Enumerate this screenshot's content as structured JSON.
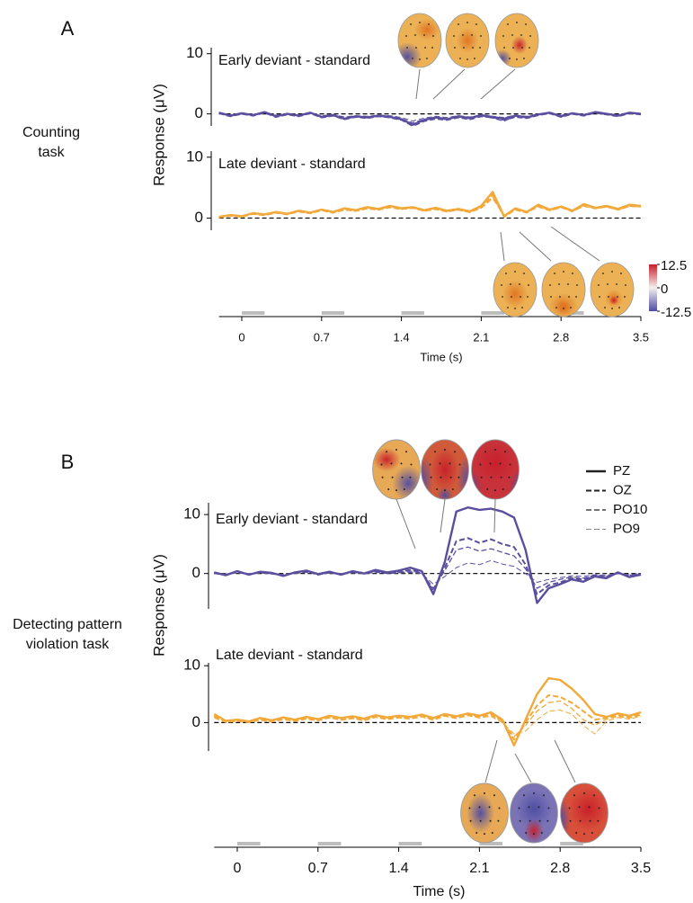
{
  "chart_data": [
    {
      "type": "line",
      "panel": "A",
      "task": [
        "Counting",
        "task"
      ],
      "ylabel": "Response (μV)",
      "title": "Early deviant - standard",
      "x": [
        -0.2,
        -0.1,
        0,
        0.1,
        0.2,
        0.3,
        0.4,
        0.5,
        0.6,
        0.7,
        0.8,
        0.9,
        1.0,
        1.1,
        1.2,
        1.3,
        1.4,
        1.5,
        1.6,
        1.7,
        1.8,
        1.9,
        2.0,
        2.1,
        2.2,
        2.3,
        2.4,
        2.5,
        2.6,
        2.7,
        2.8,
        2.9,
        3.0,
        3.1,
        3.2,
        3.3,
        3.4,
        3.5
      ],
      "xlim": [
        -0.2,
        3.5
      ],
      "ylim": [
        -2,
        11
      ],
      "yticks": [
        0,
        10
      ],
      "series": [
        {
          "name": "PZ",
          "color": "#5a4f9e",
          "style": "solid",
          "values": [
            0.2,
            -0.3,
            0.1,
            -0.2,
            0.3,
            -0.4,
            0,
            -0.3,
            0.2,
            -0.5,
            -0.2,
            -0.8,
            -0.4,
            -0.6,
            -0.3,
            -0.5,
            -0.9,
            -1.8,
            -1.0,
            -0.6,
            -0.9,
            -0.4,
            -0.7,
            -0.2,
            -0.5,
            -0.8,
            -0.3,
            -0.6,
            -0.1,
            0.2,
            -0.4,
            0.1,
            -0.2,
            0.3,
            0,
            -0.3,
            0.2,
            0
          ]
        },
        {
          "name": "OZ",
          "color": "#5a4f9e",
          "style": "dashed",
          "values": [
            0.1,
            -0.4,
            0,
            -0.3,
            0.2,
            -0.5,
            -0.1,
            -0.4,
            0.1,
            -0.6,
            -0.3,
            -0.9,
            -0.5,
            -0.7,
            -0.4,
            -0.6,
            -1.0,
            -2.0,
            -1.2,
            -0.8,
            -1.0,
            -0.6,
            -0.9,
            -0.4,
            -0.6,
            -1.0,
            -0.5,
            -0.7,
            -0.2,
            0.1,
            -0.5,
            0,
            -0.3,
            0.2,
            -0.1,
            -0.4,
            0.1,
            -0.1
          ]
        },
        {
          "name": "PO10",
          "color": "#5a4f9e",
          "style": "dashed",
          "values": [
            0.2,
            -0.2,
            0.1,
            -0.2,
            0.2,
            -0.3,
            0,
            -0.3,
            0.1,
            -0.4,
            -0.2,
            -0.7,
            -0.4,
            -0.5,
            -0.3,
            -0.4,
            -0.8,
            -1.5,
            -0.9,
            -0.6,
            -0.8,
            -0.5,
            -0.8,
            -0.3,
            -0.7,
            -1.2,
            -0.4,
            -0.5,
            -0.1,
            0.2,
            -0.3,
            0.1,
            -0.1,
            0.3,
            0,
            -0.2,
            0.2,
            0
          ]
        },
        {
          "name": "PO9",
          "color": "#5a4f9e",
          "style": "dashed",
          "values": [
            0.1,
            -0.2,
            0.1,
            -0.1,
            0.1,
            -0.2,
            0,
            -0.2,
            0.1,
            -0.3,
            -0.1,
            -0.5,
            -0.3,
            -0.4,
            -0.2,
            -0.3,
            -0.6,
            -1.2,
            -0.7,
            -0.4,
            -0.6,
            -0.3,
            -0.5,
            -0.2,
            -0.4,
            -0.6,
            -0.2,
            -0.4,
            0,
            0.2,
            -0.2,
            0.1,
            -0.1,
            0.2,
            0,
            -0.2,
            0.1,
            0
          ]
        }
      ]
    },
    {
      "type": "line",
      "title": "Late deviant - standard",
      "x": [
        -0.2,
        -0.1,
        0,
        0.1,
        0.2,
        0.3,
        0.4,
        0.5,
        0.6,
        0.7,
        0.8,
        0.9,
        1.0,
        1.1,
        1.2,
        1.3,
        1.4,
        1.5,
        1.6,
        1.7,
        1.8,
        1.9,
        2.0,
        2.1,
        2.2,
        2.3,
        2.4,
        2.5,
        2.6,
        2.7,
        2.8,
        2.9,
        3.0,
        3.1,
        3.2,
        3.3,
        3.4,
        3.5
      ],
      "xlim": [
        -0.2,
        3.5
      ],
      "ylim": [
        -2,
        11
      ],
      "yticks": [
        0,
        10
      ],
      "xlabel": "Time (s)",
      "xticks": [
        0,
        0.7,
        1.4,
        2.1,
        2.8,
        3.5
      ],
      "stimuli": [
        [
          0,
          0.2
        ],
        [
          0.7,
          0.9
        ],
        [
          1.4,
          1.6
        ],
        [
          2.1,
          2.3
        ],
        [
          2.8,
          3.0
        ]
      ],
      "colorbar": {
        "ticks": [
          12.5,
          0,
          -12.5
        ]
      },
      "series": [
        {
          "name": "PZ",
          "color": "#f2a93b",
          "style": "solid",
          "values": [
            0.2,
            0.5,
            0.3,
            0.8,
            0.6,
            1.0,
            0.7,
            1.2,
            0.9,
            1.4,
            1.0,
            1.6,
            1.3,
            1.8,
            1.5,
            2.0,
            1.6,
            1.8,
            1.3,
            1.7,
            1.2,
            1.5,
            1.1,
            2.0,
            4.3,
            0.3,
            1.6,
            1.0,
            2.2,
            1.4,
            1.9,
            1.2,
            2.3,
            1.7,
            2.0,
            1.5,
            2.2,
            2.0
          ]
        },
        {
          "name": "OZ",
          "color": "#f2a93b",
          "style": "dashed",
          "values": [
            0.1,
            0.4,
            0.2,
            0.7,
            0.5,
            0.9,
            0.6,
            1.1,
            0.8,
            1.3,
            0.9,
            1.5,
            1.2,
            1.7,
            1.4,
            1.9,
            1.5,
            1.7,
            1.2,
            1.6,
            1.1,
            1.4,
            1.0,
            1.8,
            3.8,
            0.2,
            1.4,
            0.9,
            2.0,
            1.3,
            1.8,
            1.1,
            2.1,
            1.6,
            1.9,
            1.4,
            2.0,
            1.9
          ]
        },
        {
          "name": "PO10",
          "color": "#f2a93b",
          "style": "dashed",
          "values": [
            0.2,
            0.4,
            0.3,
            0.7,
            0.5,
            0.9,
            0.7,
            1.1,
            0.8,
            1.3,
            0.9,
            1.4,
            1.2,
            1.6,
            1.4,
            1.8,
            1.5,
            1.7,
            1.2,
            1.5,
            1.1,
            1.4,
            1.0,
            1.7,
            3.5,
            0.5,
            1.5,
            1.0,
            2.0,
            1.3,
            1.8,
            1.2,
            2.1,
            1.6,
            1.9,
            1.4,
            2.1,
            1.9
          ]
        },
        {
          "name": "PO9",
          "color": "#f2a93b",
          "style": "dashed",
          "values": [
            0.1,
            0.3,
            0.2,
            0.6,
            0.4,
            0.8,
            0.6,
            1.0,
            0.7,
            1.2,
            0.8,
            1.3,
            1.1,
            1.5,
            1.3,
            1.7,
            1.4,
            1.6,
            1.1,
            1.4,
            1.0,
            1.3,
            0.9,
            1.6,
            3.2,
            0.4,
            1.3,
            0.9,
            1.8,
            1.2,
            1.7,
            1.1,
            1.9,
            1.5,
            1.8,
            1.3,
            1.9,
            1.8
          ]
        }
      ]
    },
    {
      "type": "line",
      "panel": "B",
      "task": [
        "Detecting pattern",
        "violation task"
      ],
      "ylabel": "Response (μV)",
      "title": "Early deviant - standard",
      "legend": "upper right",
      "x": [
        -0.2,
        -0.1,
        0,
        0.1,
        0.2,
        0.3,
        0.4,
        0.5,
        0.6,
        0.7,
        0.8,
        0.9,
        1.0,
        1.1,
        1.2,
        1.3,
        1.4,
        1.5,
        1.6,
        1.7,
        1.8,
        1.9,
        2.0,
        2.1,
        2.2,
        2.3,
        2.4,
        2.5,
        2.6,
        2.7,
        2.8,
        2.9,
        3.0,
        3.1,
        3.2,
        3.3,
        3.4,
        3.5
      ],
      "xlim": [
        -0.2,
        3.5
      ],
      "ylim": [
        -6,
        12
      ],
      "yticks": [
        0,
        10
      ],
      "series": [
        {
          "name": "PZ",
          "color": "#5a4f9e",
          "style": "solid",
          "values": [
            0.2,
            -0.3,
            0.4,
            -0.2,
            0.3,
            0.1,
            -0.4,
            0.2,
            0.5,
            -0.1,
            0.3,
            -0.2,
            0.4,
            0,
            0.6,
            0.2,
            0.5,
            1.0,
            0.4,
            -3.5,
            2.0,
            10.5,
            11.2,
            10.8,
            11.0,
            10.5,
            9.5,
            4.0,
            -5.0,
            -2.5,
            -1.8,
            -1.0,
            -1.4,
            -0.5,
            -0.8,
            0.2,
            -0.6,
            -0.2
          ]
        },
        {
          "name": "OZ",
          "color": "#5a4f9e",
          "style": "dashed",
          "values": [
            0.1,
            -0.2,
            0.3,
            -0.1,
            0.2,
            0,
            -0.3,
            0.1,
            0.4,
            -0.2,
            0.2,
            -0.1,
            0.3,
            0.1,
            0.4,
            0.1,
            0.3,
            0.6,
            0.2,
            -3.0,
            1.0,
            5.5,
            6.0,
            5.2,
            5.8,
            5.0,
            4.5,
            1.5,
            -3.5,
            -2.0,
            -1.5,
            -0.8,
            -1.0,
            -0.4,
            -0.6,
            0.1,
            -0.4,
            -0.1
          ]
        },
        {
          "name": "PO10",
          "color": "#5a4f9e",
          "style": "dashed",
          "values": [
            0,
            -0.2,
            0.2,
            -0.1,
            0.1,
            0,
            -0.2,
            0.1,
            0.3,
            -0.1,
            0.1,
            -0.1,
            0.2,
            0,
            0.3,
            0.1,
            0.2,
            0.4,
            0.1,
            -2.5,
            0.5,
            4.0,
            4.5,
            3.8,
            4.2,
            3.6,
            3.0,
            0.8,
            -2.5,
            -1.5,
            -1.0,
            -0.6,
            -0.8,
            -0.3,
            -0.5,
            0,
            -0.3,
            -0.1
          ]
        },
        {
          "name": "PO9",
          "color": "#5a4f9e",
          "style": "dashed",
          "values": [
            0,
            -0.1,
            0.1,
            -0.1,
            0.1,
            0,
            -0.2,
            0,
            0.2,
            -0.1,
            0.1,
            0,
            0.1,
            0,
            0.2,
            0,
            0.1,
            0.2,
            0,
            -1.8,
            -0.5,
            1.0,
            1.8,
            1.5,
            2.2,
            1.6,
            1.2,
            0,
            -1.5,
            -1.0,
            -0.7,
            -0.4,
            -0.5,
            -0.2,
            -0.3,
            0,
            -0.2,
            0
          ]
        }
      ]
    },
    {
      "type": "line",
      "title": "Late deviant - standard",
      "x": [
        -0.2,
        -0.1,
        0,
        0.1,
        0.2,
        0.3,
        0.4,
        0.5,
        0.6,
        0.7,
        0.8,
        0.9,
        1.0,
        1.1,
        1.2,
        1.3,
        1.4,
        1.5,
        1.6,
        1.7,
        1.8,
        1.9,
        2.0,
        2.1,
        2.2,
        2.3,
        2.4,
        2.5,
        2.6,
        2.7,
        2.8,
        2.9,
        3.0,
        3.1,
        3.2,
        3.3,
        3.4,
        3.5
      ],
      "xlim": [
        -0.2,
        3.5
      ],
      "ylim": [
        -5,
        10.5
      ],
      "yticks": [
        0,
        10
      ],
      "xlabel": "Time (s)",
      "xticks": [
        0,
        0.7,
        1.4,
        2.1,
        2.8,
        3.5
      ],
      "stimuli": [
        [
          0,
          0.2
        ],
        [
          0.7,
          0.9
        ],
        [
          1.4,
          1.6
        ],
        [
          2.1,
          2.3
        ],
        [
          2.8,
          3.0
        ]
      ],
      "series": [
        {
          "name": "PZ",
          "color": "#f2a93b",
          "style": "solid",
          "values": [
            1.5,
            0.3,
            0.5,
            0.2,
            0.8,
            0.4,
            0.9,
            0.5,
            1.0,
            0.6,
            1.2,
            0.8,
            1.1,
            0.7,
            1.3,
            0.9,
            1.2,
            1.0,
            1.4,
            0.8,
            1.5,
            1.1,
            1.6,
            1.2,
            1.8,
            0.5,
            -4.0,
            0.5,
            5.0,
            7.8,
            7.5,
            6.0,
            4.0,
            1.5,
            1.0,
            1.6,
            1.2,
            1.8
          ]
        },
        {
          "name": "OZ",
          "color": "#f2a93b",
          "style": "dashed",
          "values": [
            1.2,
            0.2,
            0.4,
            0.1,
            0.6,
            0.3,
            0.7,
            0.4,
            0.8,
            0.5,
            1.0,
            0.6,
            0.9,
            0.5,
            1.1,
            0.7,
            1.0,
            0.8,
            1.2,
            0.6,
            1.3,
            0.9,
            1.4,
            1.0,
            1.5,
            0.3,
            -3.0,
            0,
            3.0,
            4.8,
            4.5,
            3.5,
            2.0,
            0.5,
            0.8,
            1.3,
            1.0,
            1.5
          ]
        },
        {
          "name": "PO10",
          "color": "#f2a93b",
          "style": "dashed",
          "values": [
            1.0,
            0.1,
            0.3,
            0,
            0.5,
            0.2,
            0.6,
            0.3,
            0.7,
            0.4,
            0.9,
            0.5,
            0.8,
            0.4,
            1.0,
            0.6,
            0.9,
            0.7,
            1.1,
            0.5,
            1.2,
            0.8,
            1.3,
            0.9,
            1.3,
            0.2,
            -2.5,
            -0.5,
            2.0,
            3.5,
            3.8,
            2.5,
            0.5,
            -0.5,
            0.6,
            1.1,
            0.8,
            1.3
          ]
        },
        {
          "name": "PO9",
          "color": "#f2a93b",
          "style": "dashed",
          "values": [
            0.8,
            0,
            0.2,
            0,
            0.4,
            0.1,
            0.5,
            0.2,
            0.6,
            0.3,
            0.8,
            0.4,
            0.7,
            0.3,
            0.9,
            0.5,
            0.8,
            0.6,
            1.0,
            0.4,
            1.1,
            0.7,
            1.2,
            0.8,
            1.1,
            0,
            -2.0,
            -1.5,
            0.5,
            2.0,
            2.2,
            1.5,
            -0.5,
            -2.0,
            0.2,
            0.9,
            0.6,
            1.1
          ]
        }
      ]
    }
  ]
}
